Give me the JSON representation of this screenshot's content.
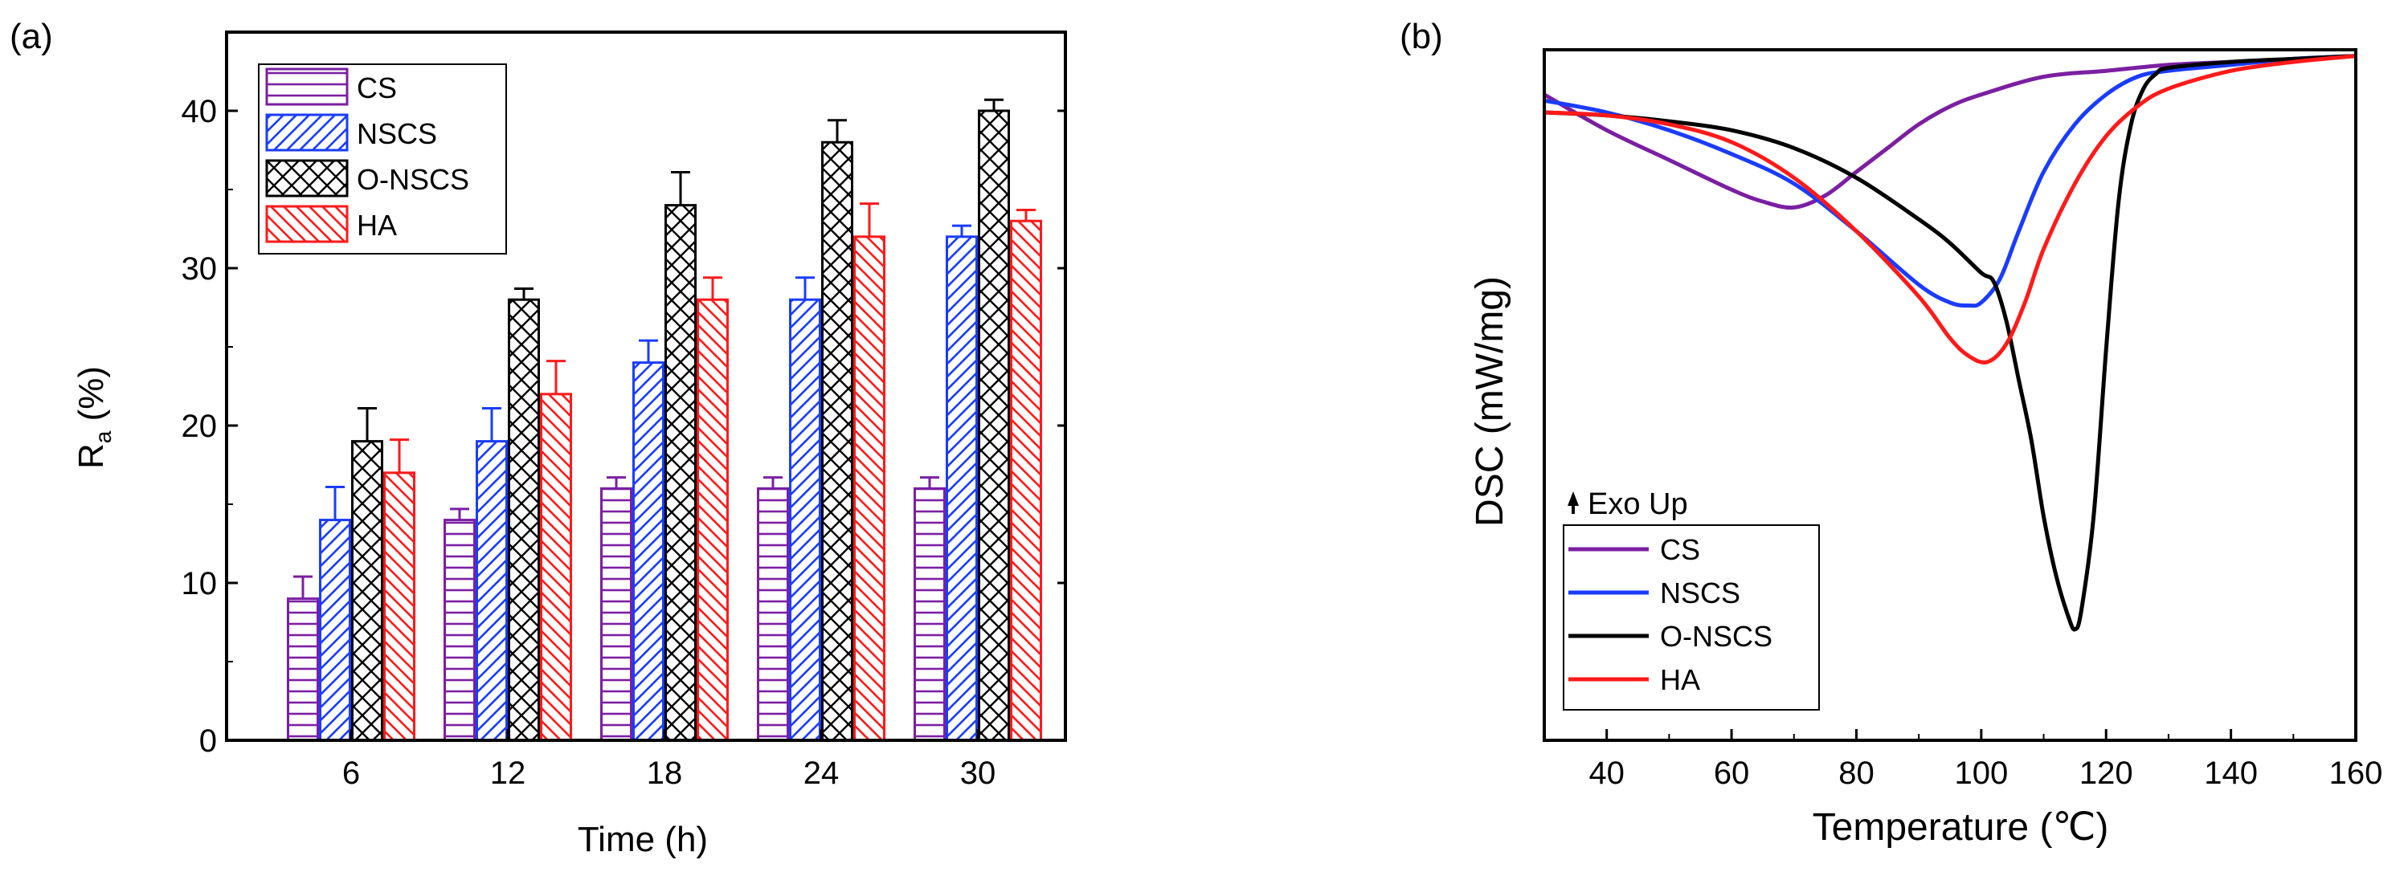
{
  "chart_data": [
    {
      "type": "bar",
      "panel_label": "(a)",
      "xlabel": "Time (h)",
      "ylabel_main": "R",
      "ylabel_sub": "a",
      "ylabel_unit": " (%)",
      "categories": [
        "6",
        "12",
        "18",
        "24",
        "30"
      ],
      "ylim": [
        0,
        45
      ],
      "yticks": [
        "0",
        "10",
        "20",
        "30",
        "40"
      ],
      "legend_position": "top-left",
      "series": [
        {
          "name": "CS",
          "color": "#7b1fa2",
          "pattern": "horizontal",
          "values": [
            9,
            14,
            16,
            16,
            16
          ],
          "errors": [
            1.4,
            0.7,
            0.7,
            0.7,
            0.7
          ]
        },
        {
          "name": "NSCS",
          "color": "#1a3cff",
          "pattern": "diagonal",
          "values": [
            14,
            19,
            24,
            28,
            32
          ],
          "errors": [
            2.1,
            2.1,
            1.4,
            1.4,
            0.7
          ]
        },
        {
          "name": "O-NSCS",
          "color": "#000000",
          "pattern": "cross",
          "values": [
            19,
            28,
            34,
            38,
            40
          ],
          "errors": [
            2.1,
            0.7,
            2.1,
            1.4,
            0.7
          ]
        },
        {
          "name": "HA",
          "color": "#ff1a1a",
          "pattern": "diagonal-reverse",
          "values": [
            17,
            22,
            28,
            32,
            33
          ],
          "errors": [
            2.1,
            2.1,
            1.4,
            2.1,
            0.7
          ]
        }
      ]
    },
    {
      "type": "line",
      "panel_label": "(b)",
      "xlabel": "Temperature (℃)",
      "ylabel": "DSC (mW/mg)",
      "xlim": [
        30,
        160
      ],
      "xticks": [
        "40",
        "60",
        "80",
        "100",
        "120",
        "140",
        "160"
      ],
      "ylim": [
        0,
        100
      ],
      "legend_position": "bottom-left",
      "annotation": "Exo Up",
      "series": [
        {
          "name": "CS",
          "color": "#7b1fa2",
          "x": [
            30,
            40,
            50,
            60,
            65,
            70,
            75,
            80,
            85,
            90,
            95,
            100,
            110,
            120,
            130,
            140,
            150,
            160
          ],
          "y": [
            93,
            87,
            82,
            77,
            75,
            74,
            76,
            80,
            84,
            88,
            91,
            93,
            96,
            97,
            98,
            98.5,
            99,
            99.5
          ]
        },
        {
          "name": "NSCS",
          "color": "#1a3cff",
          "x": [
            30,
            40,
            50,
            60,
            70,
            80,
            90,
            95,
            98,
            100,
            103,
            106,
            110,
            115,
            120,
            125,
            130,
            140,
            150,
            160
          ],
          "y": [
            92,
            90,
            87,
            83,
            78,
            70,
            61,
            58,
            57.5,
            58,
            62,
            70,
            80,
            88,
            93,
            96,
            97,
            98,
            99,
            99.5
          ]
        },
        {
          "name": "O-NSCS",
          "color": "#000000",
          "x": [
            30,
            40,
            50,
            60,
            70,
            80,
            90,
            95,
            100,
            102,
            104,
            106,
            108,
            110,
            112,
            114,
            115,
            116,
            118,
            120,
            122,
            124,
            126,
            128,
            130,
            140,
            150,
            160
          ],
          "y": [
            90,
            89.5,
            88.5,
            87,
            84,
            79,
            72,
            68,
            63,
            61.5,
            55,
            45,
            35,
            22,
            12,
            5,
            3,
            6,
            22,
            50,
            75,
            88,
            94,
            96.5,
            97.5,
            98.5,
            99,
            99.5
          ]
        },
        {
          "name": "HA",
          "color": "#ff1a1a",
          "x": [
            30,
            40,
            50,
            60,
            70,
            80,
            90,
            95,
            98,
            101,
            104,
            107,
            110,
            115,
            120,
            125,
            130,
            140,
            150,
            160
          ],
          "y": [
            90,
            89.5,
            88,
            85,
            79,
            70,
            59,
            52,
            49,
            48,
            51,
            58,
            67,
            78,
            86,
            91,
            94,
            97,
            98.5,
            99.5
          ]
        }
      ]
    }
  ]
}
